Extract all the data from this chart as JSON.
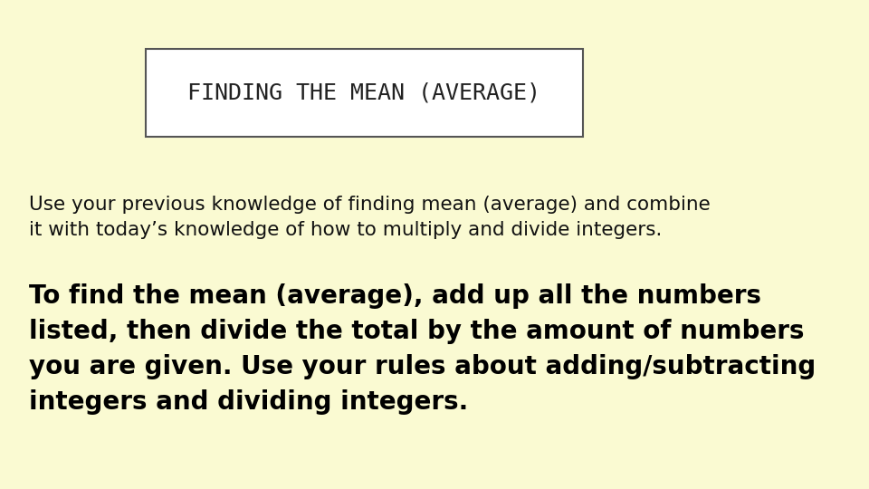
{
  "background_color": "#fafad2",
  "title_box_text": "FINDING THE MEAN (AVERAGE)",
  "title_box_bg": "#ffffff",
  "title_box_border": "#555555",
  "title_fontsize": 18,
  "title_font_color": "#222222",
  "body_text_1": "Use your previous knowledge of finding mean (average) and combine\nit with today’s knowledge of how to multiply and divide integers.",
  "body_text_1_fontsize": 15.5,
  "body_text_1_color": "#111111",
  "body_text_2": "To find the mean (average), add up all the numbers\nlisted, then divide the total by the amount of numbers\nyou are given. Use your rules about adding/subtracting\nintegers and dividing integers.",
  "body_text_2_fontsize": 20,
  "body_text_2_color": "#000000"
}
